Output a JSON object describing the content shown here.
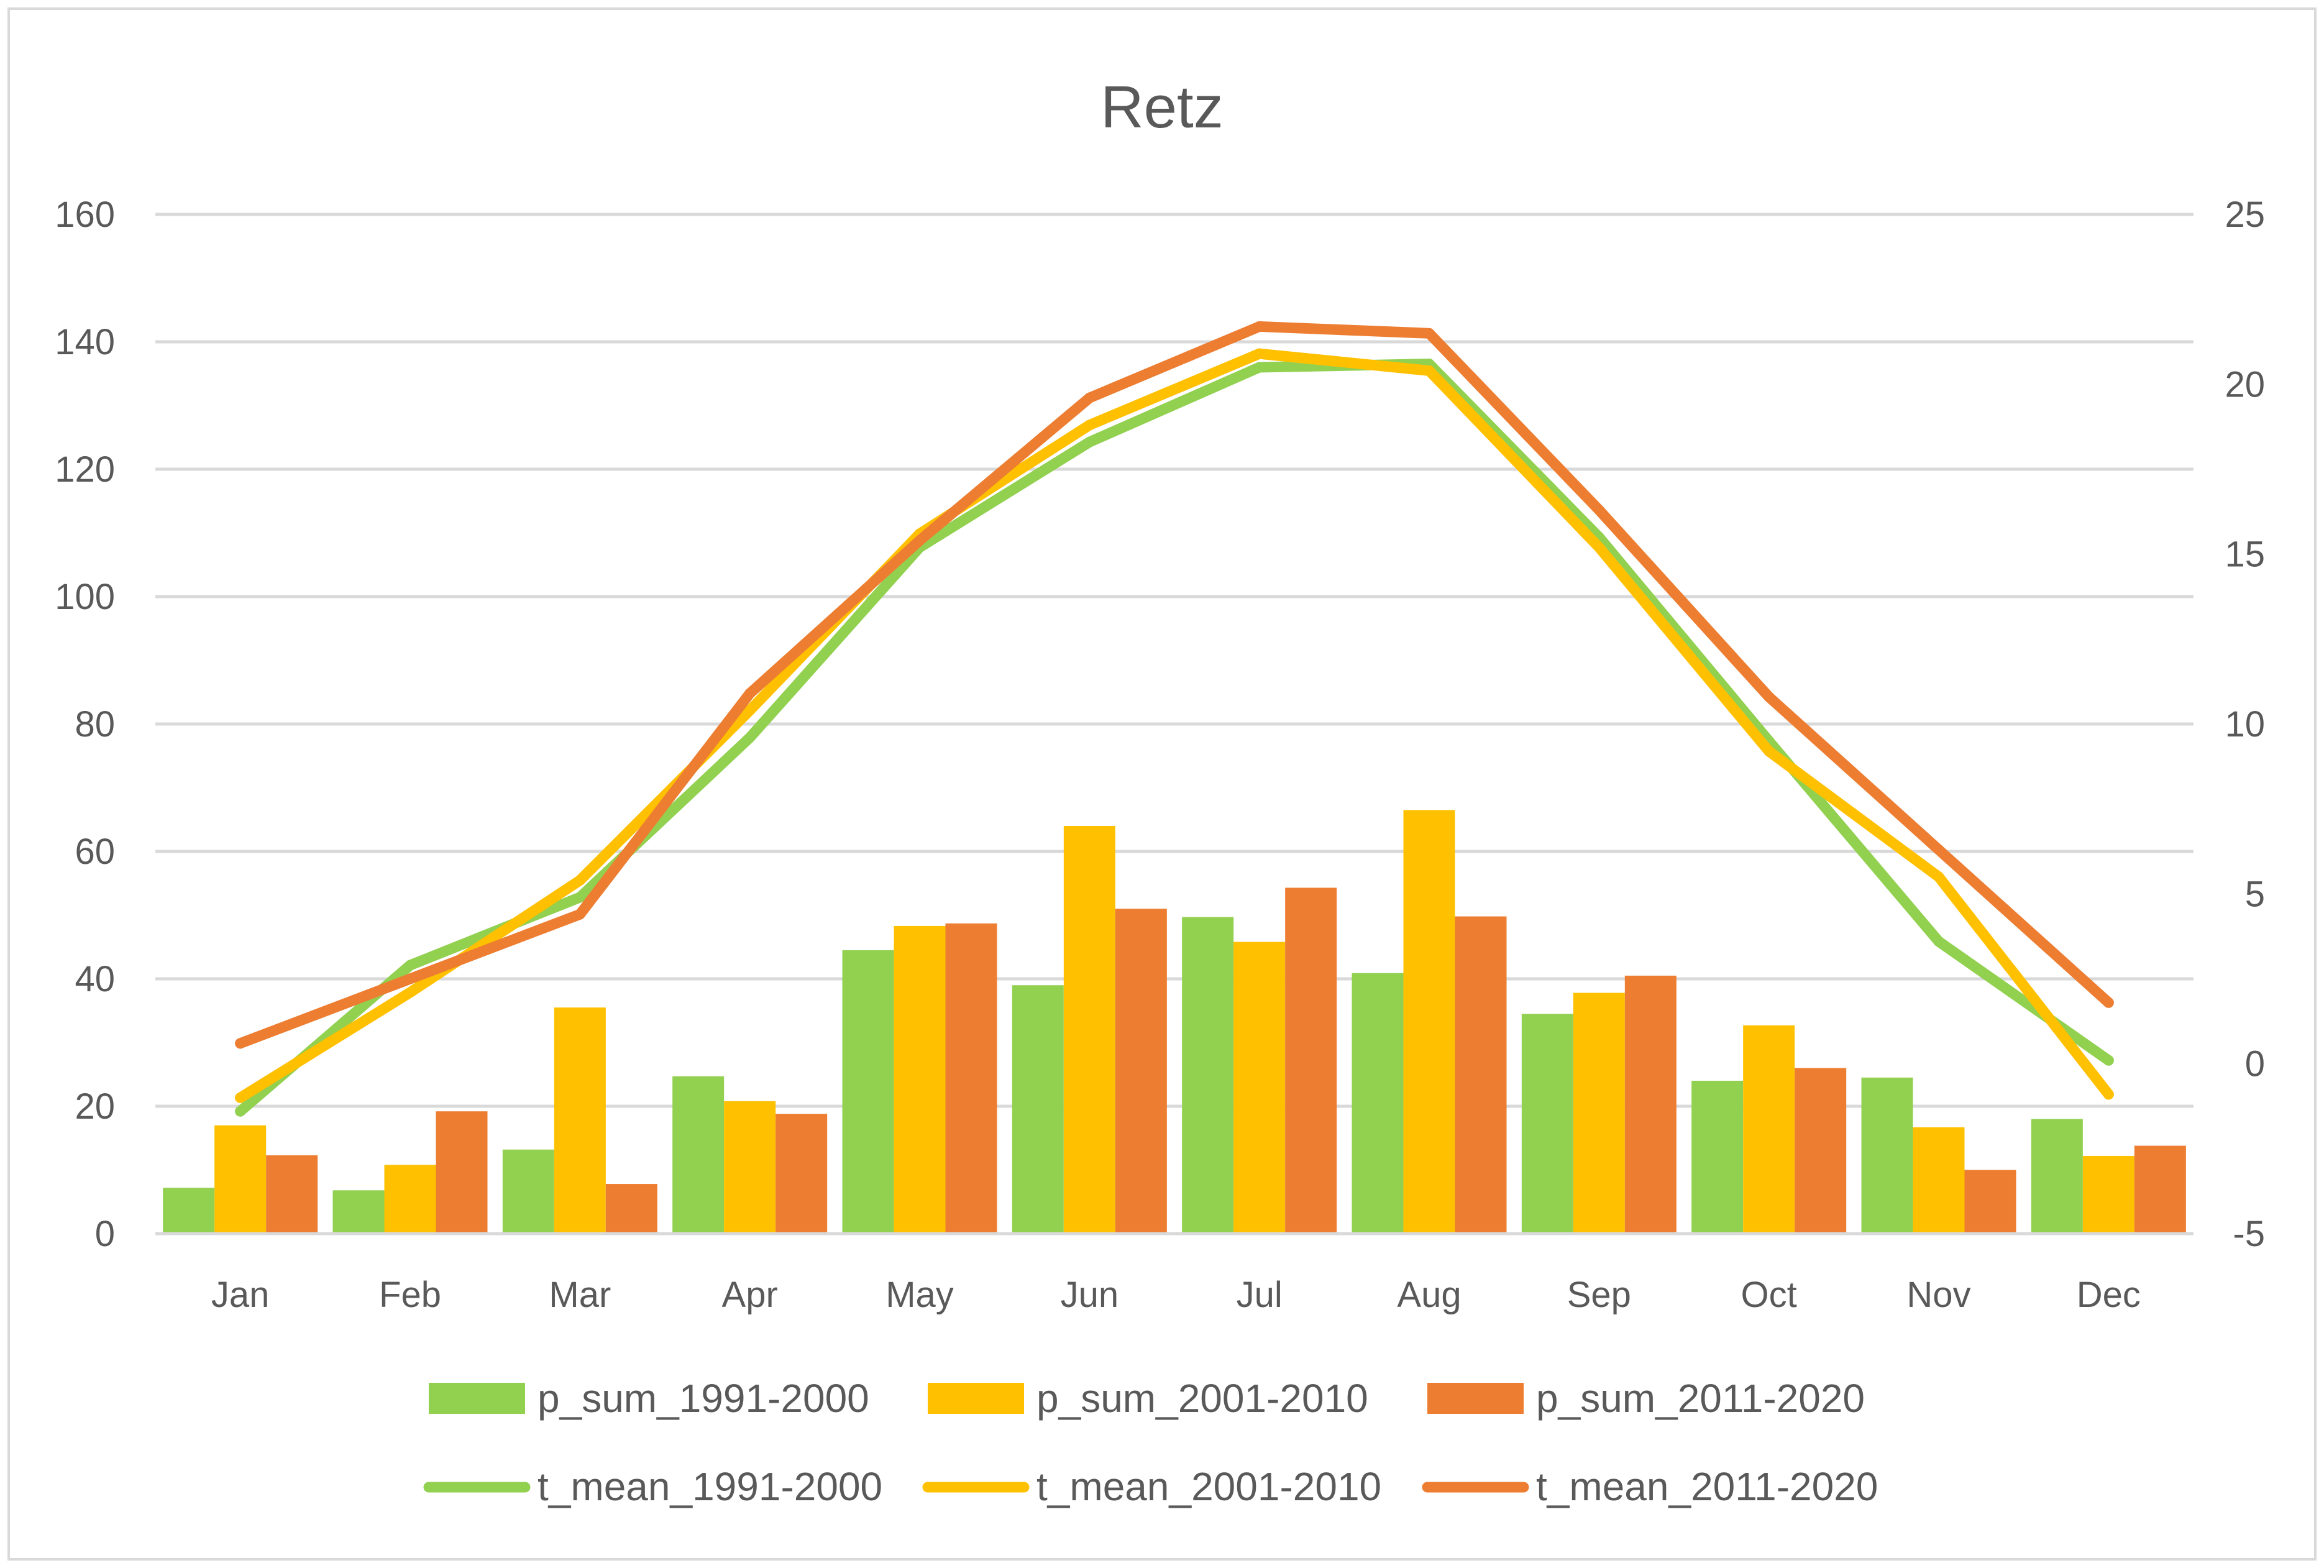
{
  "chart_data": {
    "type": "bar",
    "title": "Retz",
    "categories": [
      "Jan",
      "Feb",
      "Mar",
      "Apr",
      "May",
      "Jun",
      "Jul",
      "Aug",
      "Sep",
      "Oct",
      "Nov",
      "Dec"
    ],
    "y_left": {
      "min": 0,
      "max": 160,
      "ticks": [
        0,
        20,
        40,
        60,
        80,
        100,
        120,
        140,
        160
      ]
    },
    "y_right": {
      "min": -5,
      "max": 25,
      "ticks": [
        -5,
        0,
        5,
        10,
        15,
        20,
        25
      ]
    },
    "bar_series": [
      {
        "name": "p_sum_1991-2000",
        "color": "#92d050",
        "axis": "left",
        "values": [
          7.2,
          6.8,
          13.2,
          24.7,
          44.5,
          39.0,
          49.7,
          40.9,
          34.5,
          24.0,
          24.5,
          18.0
        ]
      },
      {
        "name": "p_sum_2001-2010",
        "color": "#ffc000",
        "axis": "left",
        "values": [
          17.0,
          10.8,
          35.5,
          20.8,
          48.3,
          64.0,
          45.8,
          66.5,
          37.8,
          32.7,
          16.7,
          12.2
        ]
      },
      {
        "name": "p_sum_2011-2020",
        "color": "#ed7d31",
        "axis": "left",
        "values": [
          12.3,
          19.2,
          7.8,
          18.8,
          48.7,
          51.0,
          54.3,
          49.8,
          40.5,
          26.0,
          10.0,
          13.8
        ]
      }
    ],
    "line_series": [
      {
        "name": "t_mean_1991-2000",
        "color": "#92d050",
        "axis": "right",
        "values": [
          -1.4,
          2.9,
          4.9,
          9.6,
          15.2,
          18.3,
          20.5,
          20.6,
          15.5,
          9.5,
          3.6,
          0.1
        ]
      },
      {
        "name": "t_mean_2001-2010",
        "color": "#ffc000",
        "axis": "right",
        "values": [
          -1.0,
          2.1,
          5.4,
          10.4,
          15.6,
          18.8,
          20.9,
          20.4,
          15.2,
          9.2,
          5.5,
          -0.9
        ]
      },
      {
        "name": "t_mean_2011-2020",
        "color": "#ed7d31",
        "axis": "right",
        "values": [
          0.6,
          2.5,
          4.4,
          10.9,
          15.4,
          19.6,
          21.7,
          21.5,
          16.3,
          10.8,
          6.3,
          1.8
        ]
      }
    ],
    "legend": {
      "position": "bottom",
      "bar_labels": [
        "p_sum_1991-2000",
        "p_sum_2001-2010",
        "p_sum_2011-2020"
      ],
      "line_labels": [
        "t_mean_1991-2000",
        "t_mean_2001-2010",
        "t_mean_2011-2020"
      ]
    },
    "grid": true
  }
}
